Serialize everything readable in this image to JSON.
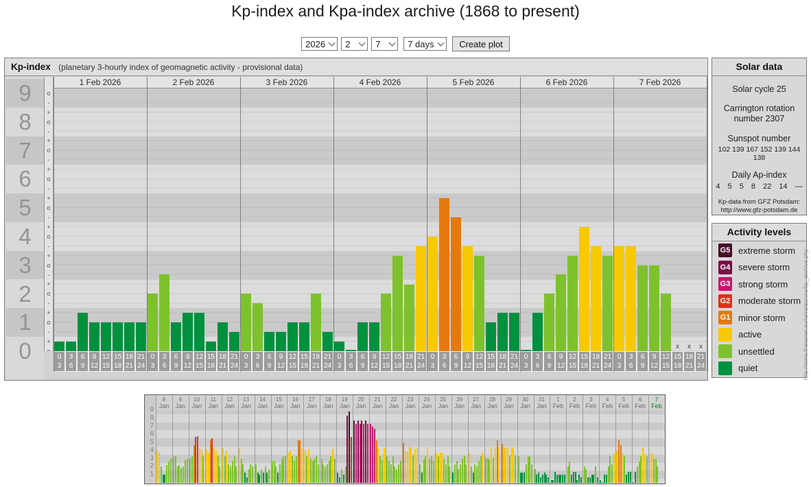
{
  "page": {
    "title": "Kp-index and Kpa-index archive (1868 to present)"
  },
  "controls": {
    "year": "2026",
    "month": "2",
    "day": "7",
    "range": "7 days",
    "create_button": "Create plot"
  },
  "colors": {
    "quiet": "#00913f",
    "unsettled": "#7dc22c",
    "active": "#f8c800",
    "g1": "#e5790f",
    "g2": "#e0301a",
    "g3": "#c2186e",
    "g4": "#7b0d46",
    "g5": "#470b27",
    "stripe_dark": "#cacaca",
    "stripe_light": "#dcdcdc",
    "numcol_dark": "#c6c6c6",
    "numcol_light": "#d9d9d9",
    "highlight_day": "#0b7d0b"
  },
  "kp_color_rules": [
    {
      "below": 1.5,
      "color": "quiet"
    },
    {
      "below": 3.5,
      "color": "unsettled"
    },
    {
      "below": 4.5,
      "color": "active"
    },
    {
      "below": 5.5,
      "color": "g1"
    },
    {
      "below": 6.5,
      "color": "g2"
    },
    {
      "below": 7.5,
      "color": "g3"
    },
    {
      "below": 8.5,
      "color": "g4"
    },
    {
      "below": 9.5,
      "color": "g5"
    }
  ],
  "chart_data": [
    {
      "type": "bar",
      "title": "Kp-index",
      "subtitle": "(planetary 3-hourly index of geomagnetic activity - provisional data)",
      "ylabel": "Kp",
      "ylim": [
        0,
        9
      ],
      "y_ticks": [
        9,
        8,
        7,
        6,
        5,
        4,
        3,
        2,
        1,
        0
      ],
      "kp_sub_ticks": [
        "+",
        "o",
        "-"
      ],
      "hour_bins": [
        [
          "0",
          "3"
        ],
        [
          "3",
          "6"
        ],
        [
          "6",
          "9"
        ],
        [
          "9",
          "12"
        ],
        [
          "12",
          "15"
        ],
        [
          "15",
          "18"
        ],
        [
          "18",
          "21"
        ],
        [
          "21",
          "24"
        ]
      ],
      "missing_marker": "x",
      "days": [
        {
          "date": "1 Feb 2026",
          "kp": [
            0.33,
            0.33,
            1.33,
            1,
            1,
            1,
            1,
            1
          ]
        },
        {
          "date": "2 Feb 2026",
          "kp": [
            2,
            2.67,
            1,
            1.33,
            1.33,
            0.33,
            1,
            0.67
          ]
        },
        {
          "date": "3 Feb 2026",
          "kp": [
            2,
            1.67,
            0.67,
            0.67,
            1,
            1,
            2,
            0.67
          ]
        },
        {
          "date": "4 Feb 2026",
          "kp": [
            0.33,
            0,
            1,
            1,
            2,
            3.33,
            2.33,
            3.67
          ]
        },
        {
          "date": "5 Feb 2026",
          "kp": [
            4,
            5.33,
            4.67,
            3.67,
            3.33,
            1,
            1.33,
            1.33
          ]
        },
        {
          "date": "6 Feb 2026",
          "kp": [
            0,
            1.33,
            2,
            2.67,
            3.33,
            4.33,
            3.67,
            3.33
          ]
        },
        {
          "date": "7 Feb 2026",
          "kp": [
            3.67,
            3.67,
            3,
            3,
            2,
            null,
            null,
            null
          ]
        }
      ]
    },
    {
      "type": "bar",
      "ylim": [
        0,
        9
      ],
      "y_ticks": [
        9,
        8,
        7,
        6,
        5,
        4,
        3,
        2,
        1
      ],
      "days": [
        {
          "day": "8",
          "month": "Jan",
          "kp": [
            4.0,
            3.7,
            2.0,
            1.0,
            1.0,
            2.2,
            2.6,
            3.0
          ]
        },
        {
          "day": "9",
          "month": "Jan",
          "kp": [
            3.2,
            3.3,
            2.0,
            2.2,
            1.9,
            2.0,
            2.8,
            3.0
          ]
        },
        {
          "day": "10",
          "month": "Jan",
          "kp": [
            3.0,
            3.3,
            4.7,
            5.7,
            5.8,
            4.3,
            4.0,
            3.3
          ]
        },
        {
          "day": "11",
          "month": "Jan",
          "kp": [
            4.2,
            3.7,
            5.3,
            5.5,
            4.3,
            4.0,
            3.3,
            2.0
          ]
        },
        {
          "day": "12",
          "month": "Jan",
          "kp": [
            4.3,
            3.3,
            4.0,
            2.3,
            2.0,
            2.7,
            3.3,
            2.0
          ]
        },
        {
          "day": "13",
          "month": "Jan",
          "kp": [
            4.3,
            3.0,
            2.3,
            1.3,
            0.7,
            1.7,
            2.3,
            2.0
          ]
        },
        {
          "day": "14",
          "month": "Jan",
          "kp": [
            2.3,
            1.3,
            1.0,
            1.7,
            1.3,
            2.0,
            1.3,
            1.7
          ]
        },
        {
          "day": "15",
          "month": "Jan",
          "kp": [
            2.7,
            2.7,
            2.0,
            1.3,
            2.3,
            3.0,
            3.3,
            3.3
          ]
        },
        {
          "day": "16",
          "month": "Jan",
          "kp": [
            3.7,
            4.0,
            3.3,
            2.7,
            3.3,
            5.3,
            5.3,
            4.3
          ]
        },
        {
          "day": "17",
          "month": "Jan",
          "kp": [
            4.0,
            3.3,
            4.2,
            3.0,
            2.7,
            3.0,
            3.3,
            2.3
          ]
        },
        {
          "day": "18",
          "month": "Jan",
          "kp": [
            3.0,
            2.3,
            2.0,
            2.3,
            2.7,
            3.3,
            4.2,
            3.0
          ]
        },
        {
          "day": "19",
          "month": "Jan",
          "kp": [
            1.3,
            0.7,
            1.7,
            1.0,
            2.0,
            8.3,
            8.8,
            5.7
          ]
        },
        {
          "day": "20",
          "month": "Jan",
          "kp": [
            7.7,
            7.3,
            7.7,
            7.3,
            7.7,
            7.3,
            7.7,
            7.3
          ]
        },
        {
          "day": "21",
          "month": "Jan",
          "kp": [
            7.3,
            7.0,
            6.7,
            5.3,
            4.3,
            3.3,
            2.8,
            4.3
          ]
        },
        {
          "day": "22",
          "month": "Jan",
          "kp": [
            3.3,
            2.7,
            2.3,
            3.3,
            2.0,
            1.7,
            2.3,
            2.7
          ]
        },
        {
          "day": "23",
          "month": "Jan",
          "kp": [
            5.0,
            4.0,
            3.9,
            4.4,
            4.4,
            3.4,
            4.2,
            4.3
          ]
        },
        {
          "day": "24",
          "month": "Jan",
          "kp": [
            2.3,
            1.3,
            2.9,
            3.3,
            4.4,
            3.0,
            3.3,
            2.7
          ]
        },
        {
          "day": "25",
          "month": "Jan",
          "kp": [
            3.7,
            3.3,
            3.7,
            3.7,
            3.0,
            2.3,
            3.3,
            2.0
          ]
        },
        {
          "day": "26",
          "month": "Jan",
          "kp": [
            1.3,
            2.3,
            2.7,
            1.7,
            2.3,
            3.0,
            3.3,
            2.3
          ]
        },
        {
          "day": "27",
          "month": "Jan",
          "kp": [
            3.7,
            2.0,
            1.3,
            2.3,
            2.0,
            2.7,
            3.3,
            3.7
          ]
        },
        {
          "day": "28",
          "month": "Jan",
          "kp": [
            3.1,
            3.1,
            2.9,
            4.3,
            3.1,
            4.4,
            5.3,
            4.4
          ]
        },
        {
          "day": "29",
          "month": "Jan",
          "kp": [
            4.8,
            4.3,
            4.3,
            4.4,
            3.4,
            4.4,
            4.4,
            3.4
          ]
        },
        {
          "day": "30",
          "month": "Jan",
          "kp": [
            3.3,
            1.3,
            1.3,
            1.3,
            2.3,
            3.2,
            3.3,
            2.3
          ]
        },
        {
          "day": "31",
          "month": "Jan",
          "kp": [
            1.7,
            1.0,
            1.3,
            0.7,
            1.0,
            1.3,
            1.0,
            0.7
          ]
        },
        {
          "day": "1",
          "month": "Feb",
          "kp": [
            0.33,
            0.33,
            1.33,
            1,
            1,
            1,
            1,
            1
          ]
        },
        {
          "day": "2",
          "month": "Feb",
          "kp": [
            2,
            2.67,
            1,
            1.33,
            1.33,
            0.33,
            1,
            0.67
          ]
        },
        {
          "day": "3",
          "month": "Feb",
          "kp": [
            2,
            1.67,
            0.67,
            0.67,
            1,
            1,
            2,
            0.67
          ]
        },
        {
          "day": "4",
          "month": "Feb",
          "kp": [
            0.33,
            0,
            1,
            1,
            2,
            3.33,
            2.33,
            3.67
          ]
        },
        {
          "day": "5",
          "month": "Feb",
          "kp": [
            4,
            5.33,
            4.67,
            3.67,
            3.33,
            1,
            1.33,
            1.33
          ]
        },
        {
          "day": "6",
          "month": "Feb",
          "kp": [
            0,
            1.33,
            2,
            2.67,
            3.33,
            4.33,
            3.67,
            3.33
          ]
        },
        {
          "day": "7",
          "month": "Feb",
          "kp": [
            3.67,
            3.67,
            3,
            3,
            2,
            null,
            null,
            null
          ],
          "highlight": true
        }
      ]
    }
  ],
  "solar_data": {
    "title": "Solar data",
    "cycle": "Solar cycle 25",
    "carrington_line1": "Carrington rotation",
    "carrington_line2": "number 2307",
    "sunspot_title": "Sunspot number",
    "sunspot_values": "102 139 167 152 139 144 138",
    "ap_title": "Daily Ap-index",
    "ap_values": "4 5 5 8 22 14 —",
    "source_line1": "Kp-data from GFZ Potsdam:",
    "source_line2": "http://www.gfz-potsdam.de"
  },
  "activity_levels": {
    "title": "Activity levels",
    "items": [
      {
        "badge": "G5",
        "label": "extreme storm",
        "color": "g5"
      },
      {
        "badge": "G4",
        "label": "severe storm",
        "color": "g4"
      },
      {
        "badge": "G3",
        "label": "strong storm",
        "color": "g3"
      },
      {
        "badge": "G2",
        "label": "moderate storm",
        "color": "g2"
      },
      {
        "badge": "G1",
        "label": "minor storm",
        "color": "g1"
      },
      {
        "badge": "",
        "label": "active",
        "color": "active"
      },
      {
        "badge": "",
        "label": "unsettled",
        "color": "unsettled"
      },
      {
        "badge": "",
        "label": "quiet",
        "color": "quiet"
      }
    ]
  },
  "watermark": "http://www.theusner.eu/terra/aurora/kp_archive.php"
}
